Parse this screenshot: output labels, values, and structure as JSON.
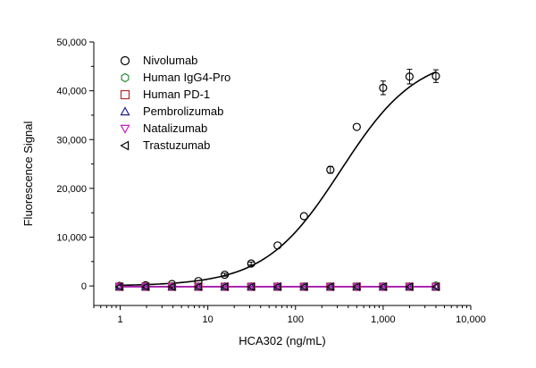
{
  "chart_data": {
    "type": "scatter",
    "title": "",
    "xlabel": "HCA302 (ng/mL)",
    "ylabel": "Fluorescence Signal",
    "xscale": "log",
    "xlim": [
      0.5,
      10000
    ],
    "ylim": [
      -4000,
      50000
    ],
    "x_ticks": [
      1,
      10,
      100,
      1000,
      10000
    ],
    "x_tick_labels": [
      "1",
      "10",
      "100",
      "1,000",
      "10,000"
    ],
    "y_ticks": [
      0,
      10000,
      20000,
      30000,
      40000,
      50000
    ],
    "y_tick_labels": [
      "0",
      "10,000",
      "20,000",
      "30,000",
      "40,000",
      "50,000"
    ],
    "grid": false,
    "legend_position": "top-left",
    "x": [
      0.98,
      1.95,
      3.9,
      7.8,
      15.6,
      31.25,
      62.5,
      125,
      250,
      500,
      1000,
      2000,
      4000
    ],
    "series": [
      {
        "name": "Nivolumab",
        "marker": "circle",
        "color": "#000000",
        "values": [
          0,
          150,
          400,
          1000,
          2300,
          4600,
          8300,
          14300,
          23800,
          32600,
          40600,
          42900,
          43000
        ],
        "errors": [
          0,
          0,
          0,
          0,
          300,
          300,
          0,
          0,
          700,
          0,
          1400,
          1500,
          1300
        ],
        "fit": {
          "bottom": 0,
          "top": 47500,
          "ec50": 330,
          "hill": 1.0,
          "color": "#000000"
        }
      },
      {
        "name": "Human IgG4-Pro",
        "marker": "hexagon",
        "color": "#2e8b3c",
        "values": [
          -150,
          -150,
          -150,
          -150,
          -150,
          -150,
          -150,
          -150,
          -150,
          -150,
          -150,
          -150,
          150
        ],
        "fit": {
          "flat": -150,
          "color": "#2e8b3c"
        }
      },
      {
        "name": "Human PD-1",
        "marker": "square",
        "color": "#b03030",
        "values": [
          -150,
          -150,
          -150,
          -150,
          -150,
          -150,
          -150,
          -150,
          -150,
          -150,
          -150,
          -150,
          -150
        ],
        "fit": {
          "flat": -150,
          "color": "#b03030"
        }
      },
      {
        "name": "Pembrolizumab",
        "marker": "triangle-up",
        "color": "#20208f",
        "values": [
          -150,
          -150,
          -150,
          -150,
          -150,
          -150,
          -150,
          -150,
          -150,
          -150,
          -150,
          -150,
          -150
        ],
        "fit": {
          "flat": -150,
          "color": "#20208f"
        }
      },
      {
        "name": "Natalizumab",
        "marker": "triangle-down",
        "color": "#c020c0",
        "values": [
          -150,
          -150,
          -150,
          -150,
          -150,
          -150,
          -150,
          -150,
          -150,
          -150,
          -150,
          -150,
          -150
        ],
        "fit": {
          "flat": -150,
          "color": "#c020c0"
        }
      },
      {
        "name": "Trastuzumab",
        "marker": "triangle-left",
        "color": "#000000",
        "values": [
          -150,
          -150,
          -150,
          -150,
          -150,
          -150,
          -150,
          -150,
          -150,
          -150,
          -150,
          -150,
          -150
        ]
      }
    ]
  }
}
